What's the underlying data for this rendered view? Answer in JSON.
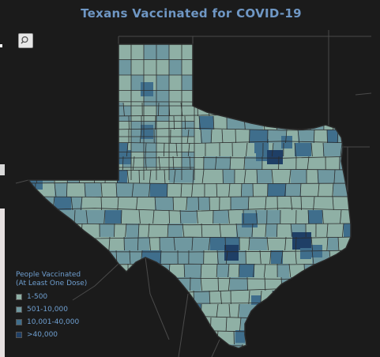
{
  "title": "Texans Vaccinated for COVID-19",
  "toolbar": {
    "zoom_icon": "magnifier-icon"
  },
  "legend": {
    "title_line1": "People Vaccinated",
    "title_line2": "(At Least One Dose)",
    "items": [
      {
        "label": "1-500",
        "color": "#8fb0a5"
      },
      {
        "label": "501-10,000",
        "color": "#6f98a0"
      },
      {
        "label": "10,001-40,000",
        "color": "#3f6e8c"
      },
      {
        "label": ">40,000",
        "color": "#1f3f66"
      }
    ]
  },
  "colors": {
    "background": "#1b1b1b",
    "county_border": "#2c2c2c",
    "title": "#6f97c4"
  }
}
